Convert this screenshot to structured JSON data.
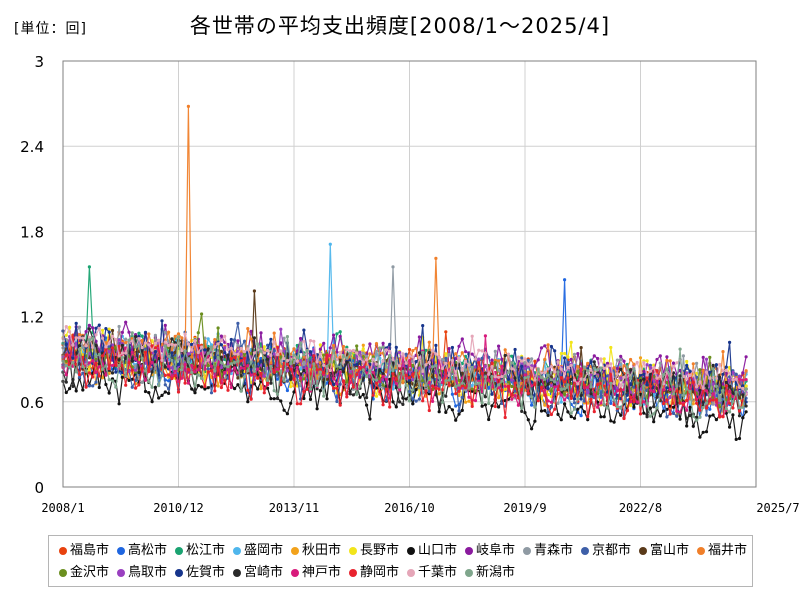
{
  "chart_data": {
    "type": "line",
    "title": "各世帯の平均支出頻度[2008/1～2025/4]",
    "unit_label": "[単位：回]",
    "ylim": [
      0,
      3
    ],
    "yticks": [
      "0",
      "0.6",
      "1.2",
      "1.8",
      "2.4",
      "3"
    ],
    "xlim": [
      "2008/1",
      "2025/7"
    ],
    "xticks": [
      "2008/1",
      "2010/12",
      "2013/11",
      "2016/10",
      "2019/9",
      "2022/8",
      "2025/7"
    ],
    "grid": true,
    "legend_position": "bottom",
    "series": [
      {
        "name": "福島市",
        "color": "#e8420e"
      },
      {
        "name": "高松市",
        "color": "#1f66e0"
      },
      {
        "name": "松江市",
        "color": "#1aa371"
      },
      {
        "name": "盛岡市",
        "color": "#4fb6ec"
      },
      {
        "name": "秋田市",
        "color": "#f2a21b"
      },
      {
        "name": "長野市",
        "color": "#f2e51b"
      },
      {
        "name": "山口市",
        "color": "#111111"
      },
      {
        "name": "岐阜市",
        "color": "#8a1a9e"
      },
      {
        "name": "青森市",
        "color": "#8f9aa3"
      },
      {
        "name": "京都市",
        "color": "#3e5fa8"
      },
      {
        "name": "富山市",
        "color": "#5a3a1a"
      },
      {
        "name": "福井市",
        "color": "#f07f2a"
      },
      {
        "name": "金沢市",
        "color": "#6b8f1f"
      },
      {
        "name": "鳥取市",
        "color": "#9a40c0"
      },
      {
        "name": "佐賀市",
        "color": "#17358c"
      },
      {
        "name": "宮崎市",
        "color": "#2a2a2a"
      },
      {
        "name": "神戸市",
        "color": "#d81b7c"
      },
      {
        "name": "静岡市",
        "color": "#e8232e"
      },
      {
        "name": "千葉市",
        "color": "#e5a6b8"
      },
      {
        "name": "新潟市",
        "color": "#7fa68c"
      }
    ],
    "notable_points": [
      {
        "series": "福井市",
        "x": "2011/3",
        "y": 2.68
      },
      {
        "series": "盛岡市",
        "x": "2014/10",
        "y": 1.71
      },
      {
        "series": "福井市",
        "x": "2017/6",
        "y": 1.61
      },
      {
        "series": "松江市",
        "x": "2008/9",
        "y": 1.55
      },
      {
        "series": "高松市",
        "x": "2020/9",
        "y": 1.46
      },
      {
        "series": "青森市",
        "x": "2016/5",
        "y": 1.55
      },
      {
        "series": "富山市",
        "x": "2012/11",
        "y": 1.38
      }
    ],
    "trend": {
      "start_level": 0.95,
      "end_level": 0.68
    }
  }
}
